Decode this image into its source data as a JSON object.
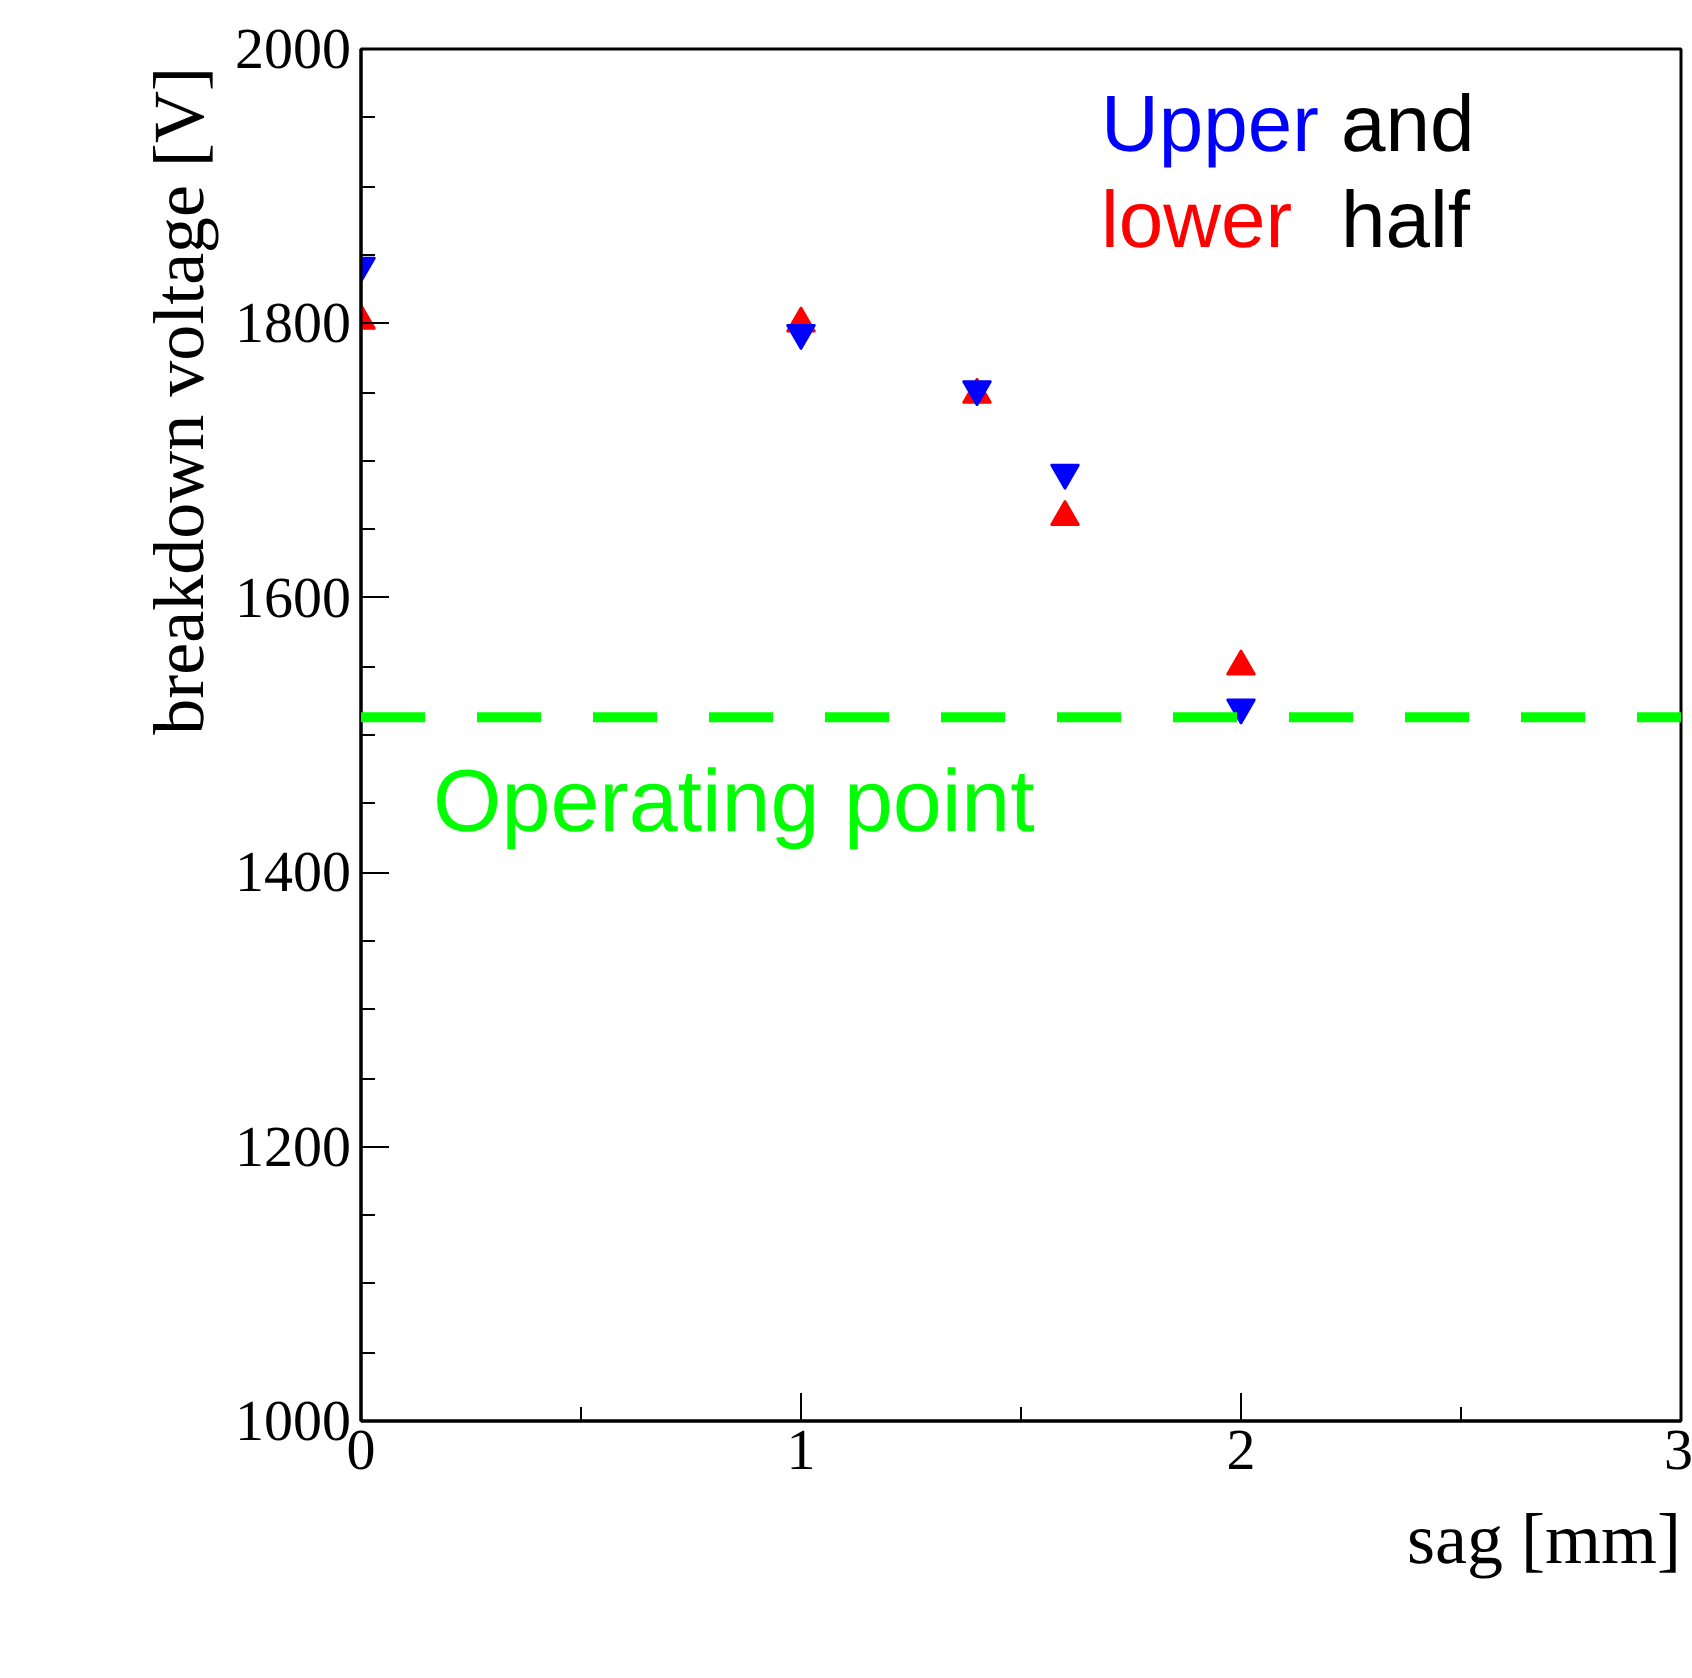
{
  "chart_data": {
    "type": "scatter",
    "xlabel": "sag [mm]",
    "ylabel": "breakdown voltage  [V]",
    "xlim": [
      0,
      3
    ],
    "ylim": [
      1000,
      2000
    ],
    "xticks": [
      0,
      1,
      2,
      3
    ],
    "yticks": [
      1000,
      1200,
      1400,
      1600,
      1800,
      2000
    ],
    "grid": false,
    "legend": false,
    "series": [
      {
        "name": "Upper",
        "color": "#0000ff",
        "marker": "triangle_down",
        "x": [
          0,
          1,
          1.4,
          1.6,
          2
        ],
        "values": [
          1842,
          1793,
          1752,
          1691,
          1520
        ]
      },
      {
        "name": "lower",
        "color": "#ff0000",
        "marker": "triangle",
        "x": [
          0,
          1,
          1.4,
          1.6,
          2
        ],
        "values": [
          1802,
          1800,
          1748,
          1659,
          1550
        ]
      }
    ],
    "annotations": [
      "and",
      "half"
    ],
    "ref_lines": [
      {
        "axis": "y",
        "value": 1513,
        "label": "Operating point",
        "color": "#00ff00",
        "line_style": "dashed"
      }
    ]
  }
}
